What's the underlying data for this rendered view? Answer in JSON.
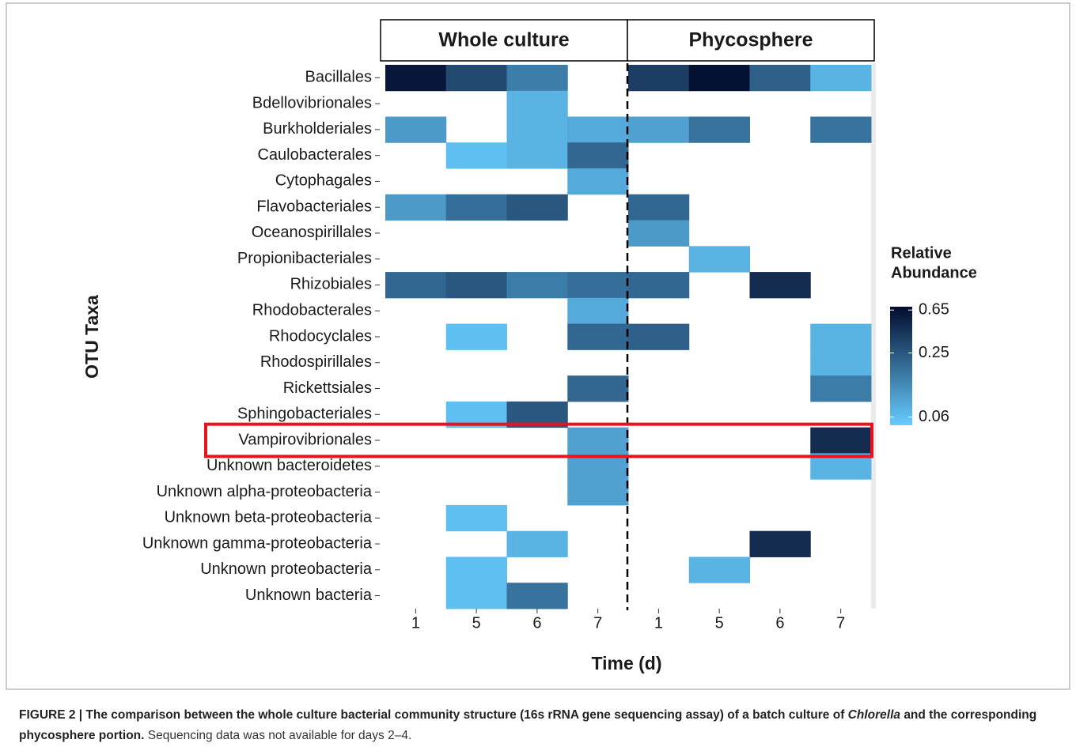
{
  "chart_data": {
    "type": "heatmap",
    "panels": [
      "Whole culture",
      "Phycosphere"
    ],
    "columns": [
      "1",
      "5",
      "6",
      "7",
      "1",
      "5",
      "6",
      "7"
    ],
    "rows": [
      "Bacillales",
      "Bdellovibrionales",
      "Burkholderiales",
      "Caulobacterales",
      "Cytophagales",
      "Flavobacteriales",
      "Oceanospirillales",
      "Propionibacteriales",
      "Rhizobiales",
      "Rhodobacterales",
      "Rhodocyclales",
      "Rhodospirillales",
      "Rickettsiales",
      "Sphingobacteriales",
      "Vampirovibrionales",
      "Unknown bacteroidetes",
      "Unknown alpha-proteobacteria",
      "Unknown beta-proteobacteria",
      "Unknown gamma-proteobacteria",
      "Unknown proteobacteria",
      "Unknown bacteria"
    ],
    "values": [
      [
        0.6,
        0.3,
        0.15,
        null,
        0.35,
        0.65,
        0.22,
        0.07
      ],
      [
        null,
        null,
        0.07,
        null,
        null,
        null,
        null,
        null
      ],
      [
        0.1,
        null,
        0.07,
        0.08,
        0.09,
        0.17,
        null,
        0.17
      ],
      [
        null,
        0.06,
        0.07,
        0.2,
        null,
        null,
        null,
        null
      ],
      [
        null,
        null,
        null,
        0.08,
        null,
        null,
        null,
        null
      ],
      [
        0.1,
        0.18,
        0.25,
        null,
        0.2,
        null,
        null,
        null
      ],
      [
        null,
        null,
        null,
        null,
        0.1,
        null,
        null,
        null
      ],
      [
        null,
        null,
        null,
        null,
        null,
        0.07,
        null,
        null
      ],
      [
        0.2,
        0.25,
        0.15,
        0.18,
        0.2,
        null,
        0.45,
        null
      ],
      [
        null,
        null,
        null,
        0.08,
        null,
        null,
        null,
        null
      ],
      [
        null,
        0.06,
        null,
        0.2,
        0.22,
        null,
        null,
        0.07
      ],
      [
        null,
        null,
        null,
        null,
        null,
        null,
        null,
        0.07
      ],
      [
        null,
        null,
        null,
        0.2,
        null,
        null,
        null,
        0.15
      ],
      [
        null,
        0.06,
        0.25,
        null,
        null,
        null,
        null,
        null
      ],
      [
        null,
        null,
        null,
        0.09,
        null,
        null,
        null,
        0.45
      ],
      [
        null,
        null,
        null,
        0.09,
        null,
        null,
        null,
        0.07
      ],
      [
        null,
        null,
        null,
        0.09,
        null,
        null,
        null,
        null
      ],
      [
        null,
        0.06,
        null,
        null,
        null,
        null,
        null,
        null
      ],
      [
        null,
        null,
        0.07,
        null,
        null,
        null,
        0.45,
        null
      ],
      [
        null,
        0.06,
        null,
        null,
        null,
        0.07,
        null,
        null
      ],
      [
        null,
        0.06,
        0.17,
        null,
        null,
        null,
        null,
        null
      ]
    ],
    "xlabel": "Time (d)",
    "ylabel": "OTU Taxa",
    "legend_title": [
      "Relative",
      "Abundance"
    ],
    "colorbar": {
      "lim": [
        0.05,
        0.7
      ],
      "ticks": [
        0.65,
        0.25,
        0.06
      ],
      "log": true,
      "low": "#66ccff",
      "high": "#020c2d"
    },
    "caption": [
      "FIGURE 2 | The comparison between the whole culture bacterial community structure (16s rRNA gene sequencing assay) of a batch culture of",
      "Chlorella",
      "and the corresponding phycosphere portion.",
      "Sequencing data was not available for days 2–4."
    ]
  }
}
